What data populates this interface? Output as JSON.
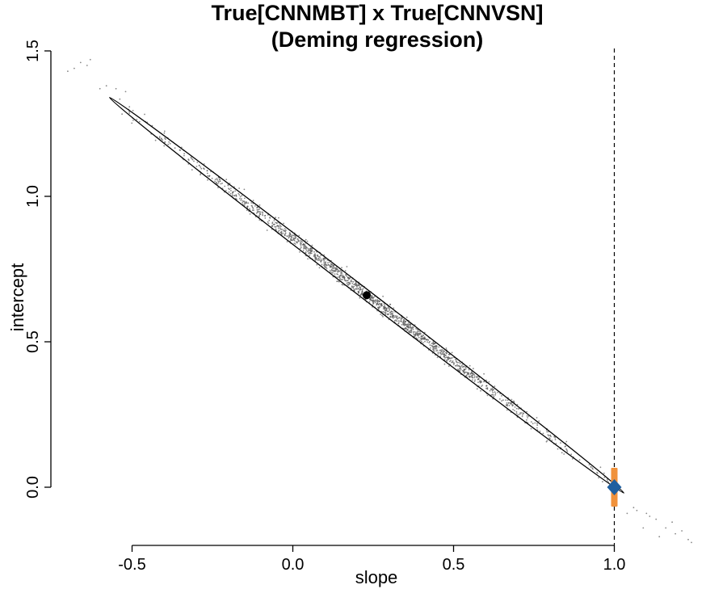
{
  "chart_data": {
    "type": "scatter",
    "title": "True[CNNMBT] x True[CNNVSN]",
    "subtitle": "(Deming regression)",
    "xlabel": "slope",
    "ylabel": "intercept",
    "xlim": [
      -0.75,
      1.28
    ],
    "ylim": [
      -0.2,
      1.5
    ],
    "x_ticks": [
      -0.5,
      0.0,
      0.5,
      1.0
    ],
    "x_tick_labels": [
      "-0.5",
      "0.0",
      "0.5",
      "1.0"
    ],
    "y_ticks": [
      0.0,
      0.5,
      1.0,
      1.5
    ],
    "y_tick_labels": [
      "0.0",
      "0.5",
      "1.0",
      "1.5"
    ],
    "grid": false,
    "reference_line": {
      "orientation": "vertical",
      "x": 1.0,
      "style": "dashed"
    },
    "point_estimate": {
      "x": 0.23,
      "y": 0.66,
      "color": "#000000"
    },
    "ideal_point": {
      "x": 1.0,
      "y": 0.0,
      "color": "#1f5fa0"
    },
    "ideal_interval": {
      "x": 1.0,
      "y_low": -0.05,
      "y_high": 0.05,
      "color": "#f0923c"
    },
    "confidence_ellipse": {
      "center": [
        0.23,
        0.66
      ],
      "end_a": [
        -0.57,
        1.34
      ],
      "end_b": [
        1.03,
        -0.02
      ],
      "half_width": 0.031
    },
    "bootstrap_cloud": {
      "count": 1400,
      "slope_line": {
        "intercept_at_zero": 0.8555,
        "slope": -0.8493
      },
      "x_range": [
        -0.55,
        1.0
      ],
      "color": "#555555",
      "outliers": [
        {
          "x": -0.66,
          "y": 1.46
        },
        {
          "x": -0.64,
          "y": 1.45
        },
        {
          "x": -0.68,
          "y": 1.44
        },
        {
          "x": -0.63,
          "y": 1.47
        },
        {
          "x": -0.7,
          "y": 1.43
        },
        {
          "x": -0.6,
          "y": 1.37
        },
        {
          "x": -0.55,
          "y": 1.37
        },
        {
          "x": -0.52,
          "y": 1.36
        },
        {
          "x": -0.58,
          "y": 1.38
        },
        {
          "x": 1.04,
          "y": -0.09
        },
        {
          "x": 1.07,
          "y": -0.08
        },
        {
          "x": 1.1,
          "y": -0.09
        },
        {
          "x": 1.13,
          "y": -0.11
        },
        {
          "x": 1.16,
          "y": -0.14
        },
        {
          "x": 1.19,
          "y": -0.16
        },
        {
          "x": 1.21,
          "y": -0.15
        },
        {
          "x": 1.23,
          "y": -0.18
        },
        {
          "x": 1.24,
          "y": -0.19
        },
        {
          "x": 1.14,
          "y": -0.17
        },
        {
          "x": 1.18,
          "y": -0.12
        },
        {
          "x": 1.09,
          "y": -0.14
        },
        {
          "x": 1.06,
          "y": -0.07
        },
        {
          "x": 1.11,
          "y": -0.1
        }
      ]
    }
  }
}
